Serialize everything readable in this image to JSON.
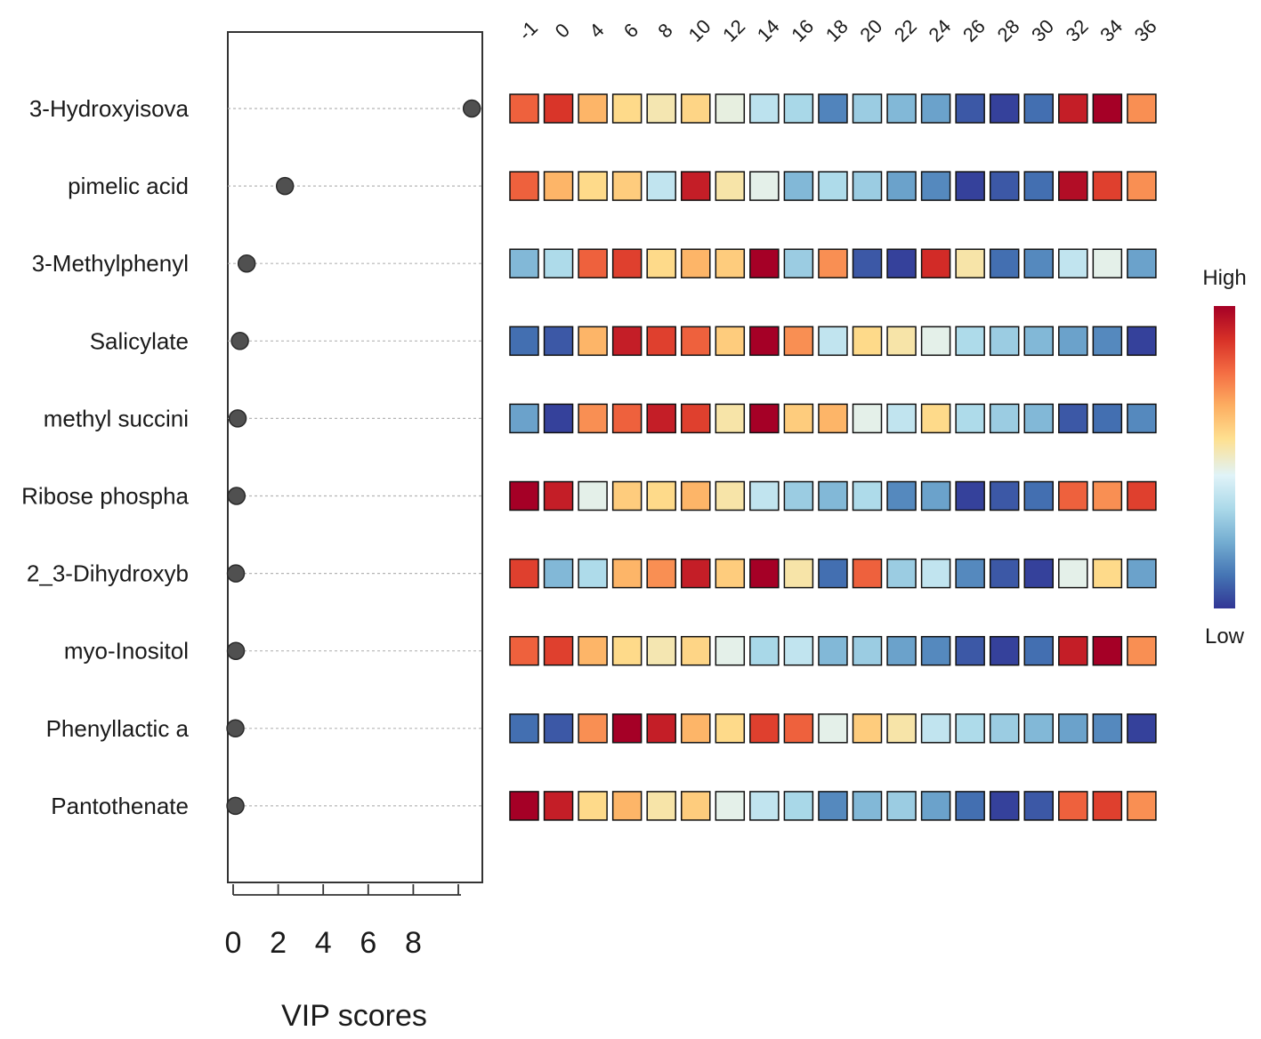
{
  "chart_data": {
    "type": "heatmap",
    "xlabel": "VIP scores",
    "x_ticks": [
      0,
      2,
      4,
      6,
      8
    ],
    "xlim": [
      -0.3,
      11.0
    ],
    "columns": [
      "-1",
      "0",
      "4",
      "6",
      "8",
      "10",
      "12",
      "14",
      "16",
      "18",
      "20",
      "22",
      "24",
      "26",
      "28",
      "30",
      "32",
      "34",
      "36"
    ],
    "rows": [
      {
        "name": "3-Hydroxyisova",
        "vip": 10.6,
        "values": [
          0.8,
          0.88,
          0.65,
          0.57,
          0.52,
          0.58,
          0.47,
          0.37,
          0.33,
          0.14,
          0.3,
          0.25,
          0.2,
          0.06,
          0.02,
          0.1,
          0.93,
          1.0,
          0.72
        ]
      },
      {
        "name": "pimelic acid",
        "vip": 2.3,
        "values": [
          0.8,
          0.65,
          0.57,
          0.6,
          0.38,
          0.93,
          0.53,
          0.46,
          0.25,
          0.34,
          0.3,
          0.2,
          0.15,
          0.02,
          0.06,
          0.1,
          0.97,
          0.86,
          0.72
        ]
      },
      {
        "name": "3-Methylphenyl",
        "vip": 0.6,
        "values": [
          0.25,
          0.34,
          0.8,
          0.86,
          0.57,
          0.65,
          0.6,
          1.0,
          0.3,
          0.72,
          0.06,
          0.02,
          0.9,
          0.53,
          0.1,
          0.15,
          0.38,
          0.46,
          0.2
        ]
      },
      {
        "name": "Salicylate",
        "vip": 0.3,
        "values": [
          0.1,
          0.06,
          0.65,
          0.93,
          0.86,
          0.8,
          0.6,
          1.0,
          0.72,
          0.38,
          0.57,
          0.53,
          0.46,
          0.34,
          0.3,
          0.25,
          0.2,
          0.15,
          0.02
        ]
      },
      {
        "name": "methyl succini",
        "vip": 0.2,
        "values": [
          0.2,
          0.02,
          0.72,
          0.8,
          0.93,
          0.86,
          0.53,
          1.0,
          0.6,
          0.65,
          0.46,
          0.38,
          0.57,
          0.34,
          0.3,
          0.25,
          0.06,
          0.1,
          0.15
        ]
      },
      {
        "name": "Ribose phospha",
        "vip": 0.15,
        "values": [
          1.0,
          0.93,
          0.46,
          0.6,
          0.57,
          0.65,
          0.53,
          0.38,
          0.3,
          0.25,
          0.34,
          0.15,
          0.2,
          0.02,
          0.06,
          0.1,
          0.8,
          0.72,
          0.86
        ]
      },
      {
        "name": "2_3-Dihydroxyb",
        "vip": 0.12,
        "values": [
          0.86,
          0.25,
          0.34,
          0.65,
          0.72,
          0.93,
          0.6,
          1.0,
          0.53,
          0.1,
          0.8,
          0.3,
          0.38,
          0.15,
          0.06,
          0.02,
          0.46,
          0.57,
          0.2
        ]
      },
      {
        "name": "myo-Inositol",
        "vip": 0.12,
        "values": [
          0.8,
          0.86,
          0.65,
          0.57,
          0.52,
          0.58,
          0.46,
          0.33,
          0.38,
          0.25,
          0.3,
          0.2,
          0.15,
          0.06,
          0.02,
          0.1,
          0.93,
          1.0,
          0.72
        ]
      },
      {
        "name": "Phenyllactic a",
        "vip": 0.1,
        "values": [
          0.1,
          0.06,
          0.72,
          1.0,
          0.93,
          0.65,
          0.57,
          0.86,
          0.8,
          0.46,
          0.6,
          0.53,
          0.38,
          0.34,
          0.3,
          0.25,
          0.2,
          0.15,
          0.02
        ]
      },
      {
        "name": "Pantothenate",
        "vip": 0.1,
        "values": [
          1.0,
          0.93,
          0.57,
          0.65,
          0.53,
          0.6,
          0.46,
          0.38,
          0.33,
          0.15,
          0.25,
          0.3,
          0.2,
          0.1,
          0.02,
          0.06,
          0.8,
          0.86,
          0.72
        ]
      }
    ],
    "colorbar": {
      "high_label": "High",
      "low_label": "Low"
    },
    "palette": [
      "#313695",
      "#4575b4",
      "#74add1",
      "#abd9e9",
      "#e0f3f8",
      "#fee090",
      "#fdae61",
      "#f46d43",
      "#d73027",
      "#a50026"
    ]
  }
}
